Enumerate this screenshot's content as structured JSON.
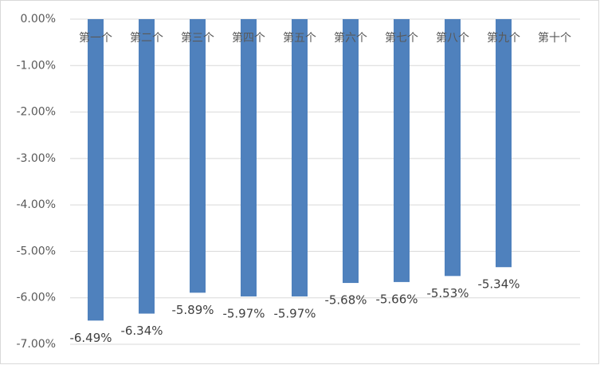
{
  "chart_data": {
    "type": "bar",
    "categories": [
      "第一个",
      "第二个",
      "第三个",
      "第四个",
      "第五个",
      "第六个",
      "第七个",
      "第八个",
      "第九个",
      "第十个"
    ],
    "values": [
      -6.49,
      -6.34,
      -5.89,
      -5.97,
      -5.97,
      -5.68,
      -5.66,
      -5.53,
      -5.34,
      null
    ],
    "value_labels": [
      "-6.49%",
      "-6.34%",
      "-5.89%",
      "-5.97%",
      "-5.97%",
      "-5.68%",
      "-5.66%",
      "-5.53%",
      "-5.34%",
      null
    ],
    "color": "#4f81bd",
    "ylim": [
      -7,
      0
    ],
    "yticks": [
      {
        "value": 0,
        "label": "0.00%"
      },
      {
        "value": -1,
        "label": "-1.00%"
      },
      {
        "value": -2,
        "label": "-2.00%"
      },
      {
        "value": -3,
        "label": "-3.00%"
      },
      {
        "value": -4,
        "label": "-4.00%"
      },
      {
        "value": -5,
        "label": "-5.00%"
      },
      {
        "value": -6,
        "label": "-6.00%"
      },
      {
        "value": -7,
        "label": "-7.00%"
      }
    ],
    "grid": true
  }
}
